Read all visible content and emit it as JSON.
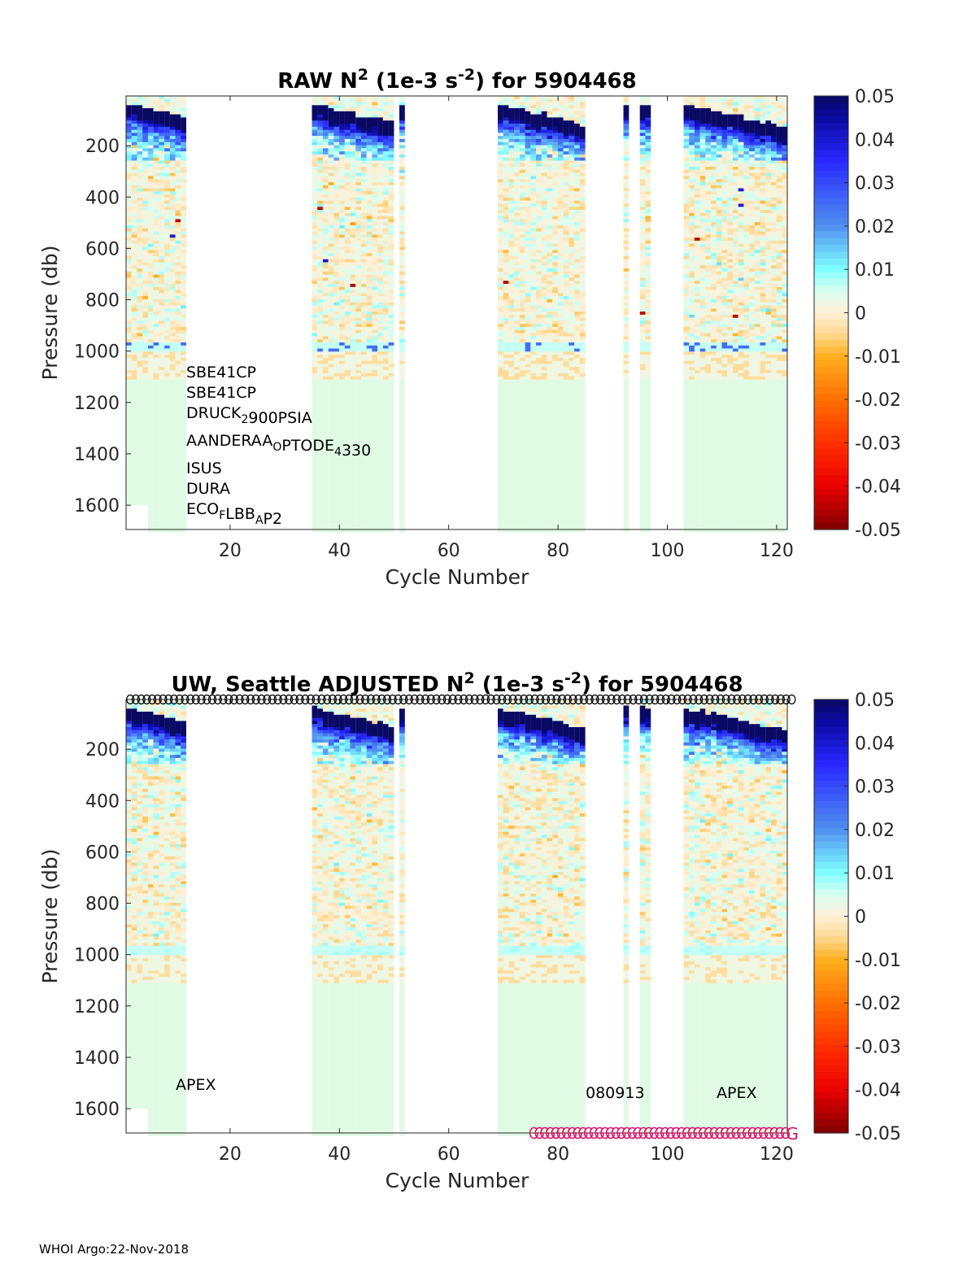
{
  "footer": "WHOI Argo:22-Nov-2018",
  "chart_data": [
    {
      "type": "heatmap",
      "title_parts": [
        "RAW N",
        "2",
        " (1e-3 s",
        "-2",
        ") for 5904468"
      ],
      "xlabel": "Cycle Number",
      "ylabel": "Pressure (db)",
      "xlim": [
        1,
        122
      ],
      "ylim": [
        6,
        1700
      ],
      "y_reversed": true,
      "xticks": [
        20,
        40,
        60,
        80,
        100,
        120
      ],
      "yticks": [
        200,
        400,
        600,
        800,
        1000,
        1200,
        1400,
        1600
      ],
      "grid": false,
      "colorbar": {
        "range": [
          -0.05,
          0.05
        ],
        "ticks": [
          "0.05",
          "0.04",
          "0.03",
          "0.02",
          "0.01",
          "0",
          "-0.01",
          "-0.02",
          "-0.03",
          "-0.04",
          "-0.05"
        ]
      },
      "cycle_ranges_with_data": [
        [
          1,
          11
        ],
        [
          35,
          49
        ],
        [
          51,
          51
        ],
        [
          69,
          84
        ],
        [
          92,
          92
        ],
        [
          95,
          96
        ],
        [
          103,
          121
        ]
      ],
      "max_profile_pressure": 1100,
      "annotations": [
        "SBE41CP",
        "SBE41CP",
        "DRUCK_2900PSIA",
        "AANDERAA_OPTODE_4330",
        "ISUS",
        "DURA",
        "ECO_FLBB_AP2"
      ]
    },
    {
      "type": "heatmap",
      "title_parts": [
        "UW, Seattle  ADJUSTED N",
        "2",
        " (1e-3 s",
        "-2",
        ") for 5904468"
      ],
      "xlabel": "Cycle Number",
      "ylabel": "Pressure (db)",
      "xlim": [
        1,
        122
      ],
      "ylim": [
        6,
        1700
      ],
      "y_reversed": true,
      "xticks": [
        20,
        40,
        60,
        80,
        100,
        120
      ],
      "yticks": [
        200,
        400,
        600,
        800,
        1000,
        1200,
        1400,
        1600
      ],
      "grid": false,
      "colorbar": {
        "range": [
          -0.05,
          0.05
        ],
        "ticks": [
          "0.05",
          "0.04",
          "0.03",
          "0.02",
          "0.01",
          "0",
          "-0.01",
          "-0.02",
          "-0.03",
          "-0.04",
          "-0.05"
        ]
      },
      "cycle_ranges_with_data": [
        [
          1,
          11
        ],
        [
          35,
          49
        ],
        [
          51,
          51
        ],
        [
          69,
          84
        ],
        [
          92,
          92
        ],
        [
          95,
          96
        ],
        [
          103,
          121
        ]
      ],
      "max_profile_pressure": 1100,
      "qc_top_markers": {
        "symbol": "o",
        "cycles": [
          1,
          122
        ]
      },
      "qc_bottom_markers": {
        "symbol": "G",
        "color": "#e0106a",
        "cycles": [
          75,
          122
        ]
      },
      "annotations": [
        "APEX",
        "080913",
        "APEX"
      ]
    }
  ],
  "colors": {
    "background_fill": "#e0fbe4",
    "axis": "#262626",
    "qc_marker": "#e0106a"
  }
}
